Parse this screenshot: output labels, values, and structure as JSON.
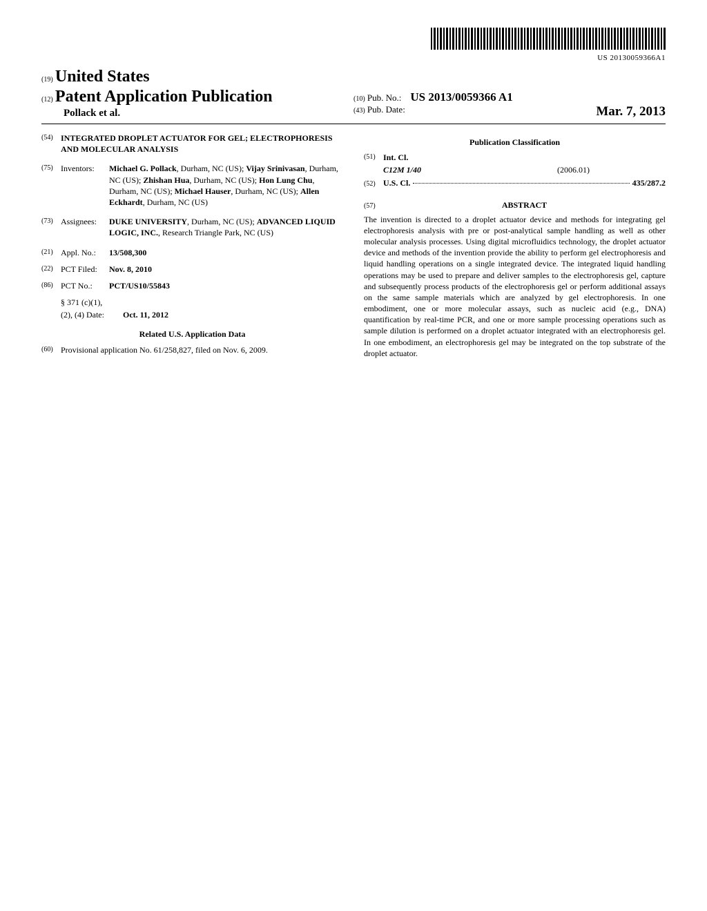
{
  "barcode_text": "US 20130059366A1",
  "header": {
    "country_num": "(19)",
    "country": "United States",
    "pub_type_num": "(12)",
    "pub_type": "Patent Application Publication",
    "authors": "Pollack et al.",
    "pub_no_num": "(10)",
    "pub_no_label": "Pub. No.:",
    "pub_no_value": "US 2013/0059366 A1",
    "pub_date_num": "(43)",
    "pub_date_label": "Pub. Date:",
    "pub_date_value": "Mar. 7, 2013"
  },
  "left": {
    "title_num": "(54)",
    "title": "INTEGRATED DROPLET ACTUATOR FOR GEL; ELECTROPHORESIS AND MOLECULAR ANALYSIS",
    "inventors_num": "(75)",
    "inventors_label": "Inventors:",
    "inventors_html": "<b>Michael G. Pollack</b>, Durham, NC (US); <b>Vijay Srinivasan</b>, Durham, NC (US); <b>Zhishan Hua</b>, Durham, NC (US); <b>Hon Lung Chu</b>, Durham, NC (US); <b>Michael Hauser</b>, Durham, NC (US); <b>Allen Eckhardt</b>, Durham, NC (US)",
    "assignees_num": "(73)",
    "assignees_label": "Assignees:",
    "assignees_html": "<b>DUKE UNIVERSITY</b>, Durham, NC (US); <b>ADVANCED LIQUID LOGIC, INC.</b>, Research Triangle Park, NC (US)",
    "applno_num": "(21)",
    "applno_label": "Appl. No.:",
    "applno_value": "13/508,300",
    "pctfiled_num": "(22)",
    "pctfiled_label": "PCT Filed:",
    "pctfiled_value": "Nov. 8, 2010",
    "pctno_num": "(86)",
    "pctno_label": "PCT No.:",
    "pctno_value": "PCT/US10/55843",
    "s371_label": "§ 371 (c)(1),",
    "s371_date_label": "(2), (4) Date:",
    "s371_date_value": "Oct. 11, 2012",
    "related_heading": "Related U.S. Application Data",
    "provisional_num": "(60)",
    "provisional_text": "Provisional application No. 61/258,827, filed on Nov. 6, 2009."
  },
  "right": {
    "classification_heading": "Publication Classification",
    "intcl_num": "(51)",
    "intcl_label": "Int. Cl.",
    "intcl_code": "C12M 1/40",
    "intcl_date": "(2006.01)",
    "uscl_num": "(52)",
    "uscl_label": "U.S. Cl.",
    "uscl_value": "435/287.2",
    "abstract_num": "(57)",
    "abstract_label": "ABSTRACT",
    "abstract_text": "The invention is directed to a droplet actuator device and methods for integrating gel electrophoresis analysis with pre or post-analytical sample handling as well as other molecular analysis processes. Using digital microfluidics technology, the droplet actuator device and methods of the invention provide the ability to perform gel electrophoresis and liquid handling operations on a single integrated device. The integrated liquid handling operations may be used to prepare and deliver samples to the electrophoresis gel, capture and subsequently process products of the electrophoresis gel or perform additional assays on the same sample materials which are analyzed by gel electrophoresis. In one embodiment, one or more molecular assays, such as nucleic acid (e.g., DNA) quantification by real-time PCR, and one or more sample processing operations such as sample dilution is performed on a droplet actuator integrated with an electrophoresis gel. In one embodiment, an electrophoresis gel may be integrated on the top substrate of the droplet actuator."
  }
}
